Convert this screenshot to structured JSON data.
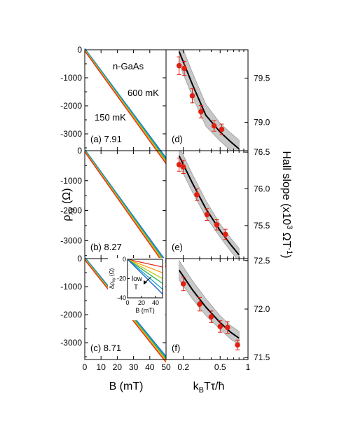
{
  "chart_data": {
    "type": "multi-panel",
    "y_axis_left_label": "ρ",
    "y_axis_left_sub": "xy",
    "y_axis_left_unit": " (Ω)",
    "x_axis_left_label": "B (mT)",
    "x_axis_right_label_main": "k",
    "x_axis_right_label_sub": "B",
    "x_axis_right_label_rest": "Tτ/ħ",
    "y_axis_right_label": "Hall slope (x10",
    "y_axis_right_sup": "3",
    "y_axis_right_unit": " ΩT",
    "y_axis_right_sup2": "-1",
    "y_axis_right_close": ")",
    "material_label": "n-GaAs",
    "temp_high_label": "600 mK",
    "temp_low_label": "150 mK",
    "left_panels": [
      {
        "id": "a",
        "label": "(a) 7.91",
        "xlim": [
          0,
          50
        ],
        "ylim": [
          -3600,
          0
        ],
        "yticks": [
          0,
          -1000,
          -2000,
          -3000
        ],
        "slope_ohm_per_mT": -79.2
      },
      {
        "id": "b",
        "label": "(b) 8.27",
        "xlim": [
          0,
          50
        ],
        "ylim": [
          -3600,
          0
        ],
        "yticks": [
          0,
          -1000,
          -2000,
          -3000
        ],
        "slope_ohm_per_mT": -75.7
      },
      {
        "id": "c",
        "label": "(c) 8.71",
        "xlim": [
          0,
          50
        ],
        "ylim": [
          -3600,
          0
        ],
        "yticks": [
          0,
          -1000,
          -2000,
          -3000
        ],
        "slope_ohm_per_mT": -71.9
      }
    ],
    "trace_colors": [
      "#1f5fd6",
      "#18a7c9",
      "#22b24c",
      "#c8c81e",
      "#ff9a10",
      "#e03020"
    ],
    "x_ticks_left": [
      0,
      10,
      20,
      30,
      40,
      50
    ],
    "inset": {
      "ylabel": "Δρ",
      "ylabel_sub": "xy",
      "ylabel_unit": " (Ω)",
      "xlabel": "B (mT)",
      "xlim": [
        0,
        50
      ],
      "ylim": [
        -40,
        0
      ],
      "xticks": [
        0,
        20,
        40
      ],
      "yticks": [
        0,
        -20,
        -40
      ],
      "annotation_1": "low",
      "annotation_2": "T",
      "end_values": [
        -8,
        -14,
        -20,
        -25,
        -31,
        -36
      ]
    },
    "right_panels": [
      {
        "id": "d",
        "label": "(d)",
        "ylim": [
          78.68,
          79.82
        ],
        "yticks": [
          79.5,
          79.0
        ],
        "points": [
          {
            "x": 0.18,
            "y": 79.64,
            "err": 0.1
          },
          {
            "x": 0.205,
            "y": 79.61,
            "err": 0.08
          },
          {
            "x": 0.25,
            "y": 79.3,
            "err": 0.08
          },
          {
            "x": 0.31,
            "y": 79.12,
            "err": 0.07
          },
          {
            "x": 0.43,
            "y": 78.96,
            "err": 0.06
          },
          {
            "x": 0.52,
            "y": 78.92,
            "err": 0.06
          }
        ],
        "fit": [
          [
            0.18,
            79.8
          ],
          [
            0.25,
            79.43
          ],
          [
            0.35,
            79.08
          ],
          [
            0.5,
            78.89
          ],
          [
            0.65,
            78.78
          ],
          [
            0.8,
            78.7
          ]
        ],
        "band": 0.1
      },
      {
        "id": "e",
        "label": "(e)",
        "ylim": [
          75.05,
          76.52
        ],
        "yticks": [
          76.5,
          76.0,
          75.5
        ],
        "points": [
          {
            "x": 0.18,
            "y": 76.33,
            "err": 0.09
          },
          {
            "x": 0.2,
            "y": 76.3,
            "err": 0.09
          },
          {
            "x": 0.28,
            "y": 75.92,
            "err": 0.08
          },
          {
            "x": 0.36,
            "y": 75.65,
            "err": 0.08
          },
          {
            "x": 0.46,
            "y": 75.51,
            "err": 0.07
          },
          {
            "x": 0.57,
            "y": 75.38,
            "err": 0.07
          }
        ],
        "fit": [
          [
            0.18,
            76.45
          ],
          [
            0.25,
            76.08
          ],
          [
            0.35,
            75.73
          ],
          [
            0.5,
            75.43
          ],
          [
            0.65,
            75.24
          ],
          [
            0.8,
            75.1
          ]
        ],
        "band": 0.09
      },
      {
        "id": "f",
        "label": "(f)",
        "ylim": [
          71.48,
          72.52
        ],
        "yticks": [
          72.5,
          72.0,
          71.5
        ],
        "points": [
          {
            "x": 0.2,
            "y": 72.26,
            "err": 0.07
          },
          {
            "x": 0.3,
            "y": 72.05,
            "err": 0.07
          },
          {
            "x": 0.4,
            "y": 71.92,
            "err": 0.06
          },
          {
            "x": 0.5,
            "y": 71.82,
            "err": 0.06
          },
          {
            "x": 0.6,
            "y": 71.81,
            "err": 0.06
          },
          {
            "x": 0.77,
            "y": 71.63,
            "err": 0.05
          }
        ],
        "fit": [
          [
            0.18,
            72.4
          ],
          [
            0.25,
            72.2
          ],
          [
            0.35,
            72.02
          ],
          [
            0.5,
            71.86
          ],
          [
            0.65,
            71.76
          ],
          [
            0.8,
            71.7
          ]
        ],
        "band": 0.07
      }
    ],
    "x_ticks_right": [
      0.2,
      0.5,
      1
    ],
    "x_ticks_right_labels": [
      "0.2",
      "0.5",
      "1"
    ],
    "x_range_right": [
      0.13,
      1.0
    ]
  }
}
